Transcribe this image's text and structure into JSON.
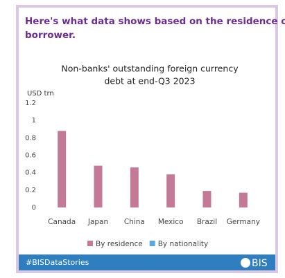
{
  "header": {
    "title": "Here's what data shows based on the residence of the borrower."
  },
  "chart_data": {
    "type": "bar",
    "title": "Non-banks' outstanding foreign currency debt at end-Q3 2023",
    "y_label": "USD trn",
    "categories": [
      "Canada",
      "Japan",
      "China",
      "Mexico",
      "Brazil",
      "Germany"
    ],
    "series": [
      {
        "name": "By residence",
        "color": "#c47a96",
        "values": [
          0.88,
          0.48,
          0.46,
          0.38,
          0.19,
          0.17
        ]
      },
      {
        "name": "By nationality",
        "color": "#5aa9dc",
        "values": [
          null,
          null,
          null,
          null,
          null,
          null
        ]
      }
    ],
    "ylim": [
      0,
      1.2
    ],
    "yticks": [
      0,
      0.2,
      0.4,
      0.6,
      0.8,
      1,
      1.2
    ],
    "grid": false
  },
  "footer": {
    "hashtag": "#BISDataStories",
    "logo_text": "BIS"
  }
}
